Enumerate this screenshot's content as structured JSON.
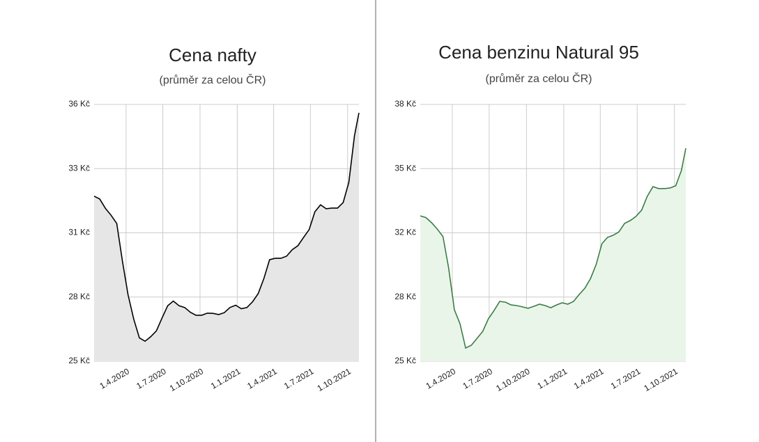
{
  "chart_data": [
    {
      "type": "area",
      "title": "Cena nafty",
      "subtitle": "(průměr za celou ČR)",
      "x": [
        "13.1.2020",
        "27.1.2020",
        "10.2.2020",
        "24.2.2020",
        "9.3.2020",
        "23.3.2020",
        "6.4.2020",
        "20.4.2020",
        "4.5.2020",
        "18.5.2020",
        "1.6.2020",
        "15.6.2020",
        "29.6.2020",
        "13.7.2020",
        "27.7.2020",
        "10.8.2020",
        "24.8.2020",
        "7.9.2020",
        "21.9.2020",
        "5.10.2020",
        "19.10.2020",
        "2.11.2020",
        "16.11.2020",
        "30.11.2020",
        "14.12.2020",
        "28.12.2020",
        "11.1.2021",
        "25.1.2021",
        "8.2.2021",
        "22.2.2021",
        "8.3.2021",
        "22.3.2021",
        "5.4.2021",
        "19.4.2021",
        "3.5.2021",
        "17.5.2021",
        "31.5.2021",
        "14.6.2021",
        "28.6.2021",
        "12.7.2021",
        "26.7.2021",
        "9.8.2021",
        "23.8.2021",
        "6.9.2021",
        "20.9.2021",
        "4.10.2021",
        "18.10.2021",
        "29.10.2021"
      ],
      "values": [
        32.07,
        31.95,
        31.55,
        31.25,
        30.9,
        29.3,
        27.85,
        26.8,
        26.0,
        25.86,
        26.05,
        26.3,
        26.85,
        27.38,
        27.58,
        27.38,
        27.3,
        27.1,
        26.97,
        26.97,
        27.06,
        27.05,
        27.0,
        27.08,
        27.3,
        27.4,
        27.25,
        27.3,
        27.55,
        27.9,
        28.55,
        29.35,
        29.41,
        29.41,
        29.5,
        29.78,
        29.95,
        30.3,
        30.64,
        31.4,
        31.7,
        31.53,
        31.56,
        31.56,
        31.8,
        32.66,
        34.66,
        35.64
      ],
      "color": "#000000",
      "fill_color": "#e6e6e6",
      "xlim": [
        "13.1.2020",
        "29.10.2021"
      ],
      "xticks": [
        "1.4.2020",
        "1.7.2020",
        "1.10.2020",
        "1.1.2021",
        "1.4.2021",
        "1.7.2021",
        "1.10.2021"
      ],
      "ylim": [
        25,
        36
      ],
      "yticks": [
        {
          "value": 25,
          "label": "25 Kč"
        },
        {
          "value": 27.75,
          "label": "28 Kč"
        },
        {
          "value": 30.5,
          "label": "31 Kč"
        },
        {
          "value": 33.25,
          "label": "33 Kč"
        },
        {
          "value": 36,
          "label": "36 Kč"
        }
      ],
      "grid": true
    },
    {
      "type": "area",
      "title": "Cena benzinu Natural 95",
      "subtitle": "(průměr za celou ČR)",
      "x": [
        "13.1.2020",
        "27.1.2020",
        "10.2.2020",
        "24.2.2020",
        "9.3.2020",
        "23.3.2020",
        "6.4.2020",
        "20.4.2020",
        "4.5.2020",
        "18.5.2020",
        "1.6.2020",
        "15.6.2020",
        "29.6.2020",
        "13.7.2020",
        "27.7.2020",
        "10.8.2020",
        "24.8.2020",
        "7.9.2020",
        "21.9.2020",
        "5.10.2020",
        "19.10.2020",
        "2.11.2020",
        "16.11.2020",
        "30.11.2020",
        "14.12.2020",
        "28.12.2020",
        "11.1.2021",
        "25.1.2021",
        "8.2.2021",
        "22.2.2021",
        "8.3.2021",
        "22.3.2021",
        "5.4.2021",
        "19.4.2021",
        "3.5.2021",
        "17.5.2021",
        "31.5.2021",
        "14.6.2021",
        "28.6.2021",
        "12.7.2021",
        "26.7.2021",
        "9.8.2021",
        "23.8.2021",
        "6.9.2021",
        "20.9.2021",
        "4.10.2021",
        "18.10.2021",
        "29.10.2021"
      ],
      "values": [
        32.36,
        32.27,
        32.01,
        31.69,
        31.31,
        29.72,
        27.61,
        26.9,
        25.67,
        25.81,
        26.16,
        26.51,
        27.15,
        27.57,
        28.03,
        27.99,
        27.85,
        27.82,
        27.75,
        27.68,
        27.78,
        27.89,
        27.82,
        27.71,
        27.85,
        27.96,
        27.89,
        28.03,
        28.38,
        28.7,
        29.19,
        29.9,
        30.95,
        31.27,
        31.38,
        31.55,
        31.98,
        32.12,
        32.33,
        32.65,
        33.35,
        33.84,
        33.74,
        33.74,
        33.77,
        33.88,
        34.65,
        35.78
      ],
      "color": "#3a7d44",
      "fill_color": "#eaf5ea",
      "xlim": [
        "13.1.2020",
        "29.10.2021"
      ],
      "xticks": [
        "1.4.2020",
        "1.7.2020",
        "1.10.2020",
        "1.1.2021",
        "1.4.2021",
        "1.7.2021",
        "1.10.2021"
      ],
      "ylim": [
        25,
        38
      ],
      "yticks": [
        {
          "value": 25,
          "label": "25 Kč"
        },
        {
          "value": 28.25,
          "label": "28 Kč"
        },
        {
          "value": 31.5,
          "label": "32 Kč"
        },
        {
          "value": 34.75,
          "label": "35 Kč"
        },
        {
          "value": 38,
          "label": "38 Kč"
        }
      ],
      "grid": true
    }
  ]
}
